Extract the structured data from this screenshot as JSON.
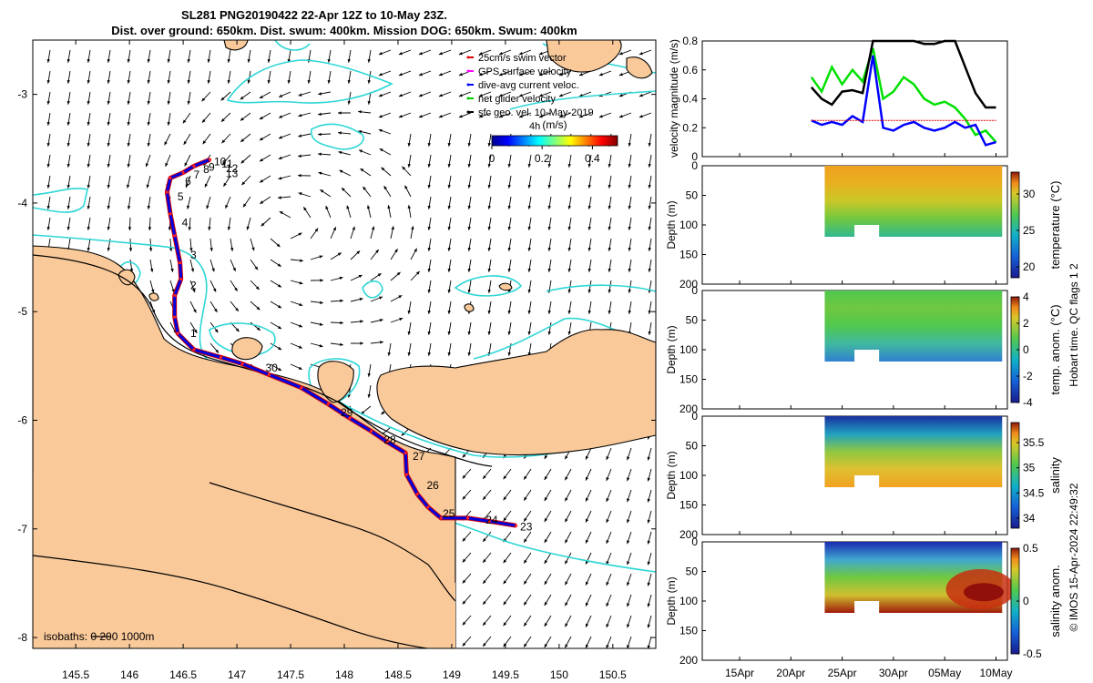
{
  "title": {
    "line1": "SL281 PNG20190422 22-Apr 12Z to 10-May 23Z.",
    "line2": "Dist. over ground: 650km. Dist. swum: 400km. Mission DOG: 650km. Swum: 400km"
  },
  "map": {
    "lon_range": [
      145.1,
      150.9
    ],
    "lat_range": [
      -8.1,
      -2.5
    ],
    "x_ticks": [
      "145.5",
      "146",
      "146.5",
      "147",
      "147.5",
      "148",
      "148.5",
      "149",
      "149.5",
      "150",
      "150.5"
    ],
    "y_ticks": [
      "-3",
      "-4",
      "-5",
      "-6",
      "-7",
      "-8"
    ],
    "legend": [
      {
        "label": "25cm/s swim vector",
        "color": "#e00000"
      },
      {
        "label": "GPS surface velocity",
        "color": "#ff00ff"
      },
      {
        "label": "dive-avg current veloc.",
        "color": "#0000ff"
      },
      {
        "label": "net glider velocity",
        "color": "#00d000"
      },
      {
        "label": "sfc geo. vel. 10-May-2019",
        "color": "#000000"
      }
    ],
    "colorbar": {
      "label": "(m/s)",
      "ticks": [
        "0",
        "0.2",
        "0.4"
      ],
      "range": [
        0,
        0.5
      ]
    },
    "aux_label": "4h",
    "isobath_label": "isobaths:   0   200  1000m",
    "track": [
      {
        "lon": 146.75,
        "lat": -3.6
      },
      {
        "lon": 146.6,
        "lat": -3.66
      },
      {
        "lon": 146.5,
        "lat": -3.72
      },
      {
        "lon": 146.38,
        "lat": -3.77
      },
      {
        "lon": 146.35,
        "lat": -3.9
      },
      {
        "lon": 146.38,
        "lat": -4.1
      },
      {
        "lon": 146.42,
        "lat": -4.3
      },
      {
        "lon": 146.47,
        "lat": -4.55
      },
      {
        "lon": 146.48,
        "lat": -4.7
      },
      {
        "lon": 146.42,
        "lat": -4.85
      },
      {
        "lon": 146.42,
        "lat": -5.05
      },
      {
        "lon": 146.45,
        "lat": -5.2
      },
      {
        "lon": 146.6,
        "lat": -5.35
      },
      {
        "lon": 146.85,
        "lat": -5.42
      },
      {
        "lon": 147.05,
        "lat": -5.48
      },
      {
        "lon": 147.3,
        "lat": -5.58
      },
      {
        "lon": 147.6,
        "lat": -5.7
      },
      {
        "lon": 147.85,
        "lat": -5.85
      },
      {
        "lon": 148.05,
        "lat": -5.98
      },
      {
        "lon": 148.25,
        "lat": -6.1
      },
      {
        "lon": 148.4,
        "lat": -6.2
      },
      {
        "lon": 148.57,
        "lat": -6.3
      },
      {
        "lon": 148.58,
        "lat": -6.5
      },
      {
        "lon": 148.68,
        "lat": -6.68
      },
      {
        "lon": 148.78,
        "lat": -6.8
      },
      {
        "lon": 148.9,
        "lat": -6.9
      },
      {
        "lon": 149.15,
        "lat": -6.9
      },
      {
        "lon": 149.35,
        "lat": -6.93
      },
      {
        "lon": 149.6,
        "lat": -6.97
      }
    ],
    "day_labels": [
      {
        "text": "10",
        "lon": 146.77,
        "lat": -3.62
      },
      {
        "text": "9",
        "lon": 146.72,
        "lat": -3.67
      },
      {
        "text": "11",
        "lon": 146.84,
        "lat": -3.64
      },
      {
        "text": "8",
        "lon": 146.67,
        "lat": -3.69
      },
      {
        "text": "12",
        "lon": 146.88,
        "lat": -3.68
      },
      {
        "text": "13",
        "lon": 146.88,
        "lat": -3.73
      },
      {
        "text": "7",
        "lon": 146.58,
        "lat": -3.74
      },
      {
        "text": "6",
        "lon": 146.5,
        "lat": -3.8
      },
      {
        "text": "5",
        "lon": 146.43,
        "lat": -3.94
      },
      {
        "text": "4",
        "lon": 146.47,
        "lat": -4.18
      },
      {
        "text": "3",
        "lon": 146.55,
        "lat": -4.48
      },
      {
        "text": "2",
        "lon": 146.55,
        "lat": -4.76
      },
      {
        "text": "1",
        "lon": 146.55,
        "lat": -5.2
      },
      {
        "text": "30",
        "lon": 147.25,
        "lat": -5.52
      },
      {
        "text": "29",
        "lon": 147.95,
        "lat": -5.93
      },
      {
        "text": "28",
        "lon": 148.35,
        "lat": -6.18
      },
      {
        "text": "27",
        "lon": 148.62,
        "lat": -6.33
      },
      {
        "text": "26",
        "lon": 148.75,
        "lat": -6.6
      },
      {
        "text": "25",
        "lon": 148.9,
        "lat": -6.86
      },
      {
        "text": "24",
        "lon": 149.3,
        "lat": -6.92
      },
      {
        "text": "23",
        "lon": 149.62,
        "lat": -6.98
      }
    ]
  },
  "panels": {
    "date_ticks": [
      "15Apr",
      "20Apr",
      "25Apr",
      "30Apr",
      "05May",
      "10May"
    ],
    "velocity": {
      "ylabel": "velocity magnitude (m/s)",
      "y_ticks": [
        "0",
        "0.2",
        "0.4",
        "0.6",
        "0.8"
      ],
      "ylim": [
        0,
        0.8
      ]
    },
    "depth_ylabel": "Depth (m)",
    "depth_ticks": [
      "0",
      "50",
      "100",
      "150",
      "200"
    ],
    "temperature": {
      "clabel": "temperature (°C)",
      "cticks": [
        "20",
        "25",
        "30"
      ]
    },
    "temp_anom": {
      "clabel": "temp. anom. (°C)",
      "cticks": [
        "-4",
        "-2",
        "0",
        "2",
        "4"
      ]
    },
    "salinity": {
      "clabel": "salinity",
      "cticks": [
        "34",
        "34.5",
        "35",
        "35.5"
      ]
    },
    "sal_anom": {
      "clabel": "salinity anom.",
      "cticks": [
        "-0.5",
        "0",
        "0.5"
      ]
    },
    "qc_note": "Hobart time. QC flags 1  2",
    "credit": "© IMOS 15-Apr-2024 22:49:32"
  },
  "chart_data": [
    {
      "type": "scatter",
      "title": "SL281 PNG20190422 22-Apr 12Z to 10-May 23Z.",
      "xlabel": "",
      "ylabel": "",
      "xlim": [
        145.1,
        150.9
      ],
      "ylim": [
        -8.1,
        -2.5
      ],
      "series": [
        {
          "name": "dive-avg current veloc.",
          "x": [
            146.75,
            146.38,
            146.47,
            146.42,
            147.05,
            148.05,
            148.57,
            148.9,
            149.6
          ],
          "y": [
            -3.6,
            -3.77,
            -4.55,
            -5.05,
            -5.48,
            -5.98,
            -6.3,
            -6.9,
            -6.97
          ]
        }
      ]
    },
    {
      "type": "line",
      "xlabel": "",
      "ylabel": "velocity magnitude (m/s)",
      "ylim": [
        0,
        0.8
      ],
      "x": [
        "22Apr",
        "23Apr",
        "24Apr",
        "25Apr",
        "26Apr",
        "27Apr",
        "28Apr",
        "29Apr",
        "30Apr",
        "01May",
        "02May",
        "03May",
        "04May",
        "05May",
        "06May",
        "07May",
        "08May",
        "09May",
        "10May"
      ],
      "series": [
        {
          "name": "GPS surface velocity",
          "values": [
            0.48,
            0.4,
            0.36,
            0.45,
            0.46,
            0.44,
            0.8,
            0.8,
            0.8,
            0.8,
            0.8,
            0.78,
            0.78,
            0.8,
            0.8,
            0.62,
            0.44,
            0.34,
            0.34
          ]
        },
        {
          "name": "dive-avg current veloc.",
          "values": [
            0.25,
            0.22,
            0.24,
            0.22,
            0.28,
            0.24,
            0.7,
            0.2,
            0.18,
            0.22,
            0.24,
            0.2,
            0.18,
            0.2,
            0.24,
            0.2,
            0.22,
            0.08,
            0.1
          ]
        },
        {
          "name": "net glider velocity",
          "values": [
            0.55,
            0.45,
            0.62,
            0.5,
            0.6,
            0.52,
            0.75,
            0.4,
            0.45,
            0.55,
            0.5,
            0.4,
            0.36,
            0.38,
            0.34,
            0.26,
            0.15,
            0.18,
            0.1
          ]
        },
        {
          "name": "25cm/s swim vector",
          "values": [
            0.25,
            0.25,
            0.25,
            0.25,
            0.25,
            0.25,
            0.25,
            0.25,
            0.25,
            0.25,
            0.25,
            0.25,
            0.25,
            0.25,
            0.25,
            0.25,
            0.25,
            0.25,
            0.25
          ]
        }
      ]
    },
    {
      "type": "heatmap",
      "ylabel": "Depth (m)",
      "ylim": [
        200,
        0
      ],
      "clabel": "temperature (°C)",
      "clim": [
        18.5,
        33
      ]
    },
    {
      "type": "heatmap",
      "ylabel": "Depth (m)",
      "ylim": [
        200,
        0
      ],
      "clabel": "temp. anom. (°C)",
      "clim": [
        -4,
        4
      ]
    },
    {
      "type": "heatmap",
      "ylabel": "Depth (m)",
      "ylim": [
        200,
        0
      ],
      "clabel": "salinity",
      "clim": [
        33.8,
        35.9
      ]
    },
    {
      "type": "heatmap",
      "ylabel": "Depth (m)",
      "ylim": [
        200,
        0
      ],
      "clabel": "salinity anom.",
      "clim": [
        -0.5,
        0.5
      ]
    }
  ]
}
